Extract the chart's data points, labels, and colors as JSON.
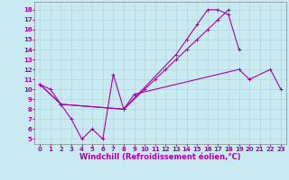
{
  "background_color": "#c8eaf0",
  "line_color": "#aa00aa",
  "grid_color": "#b0d8d8",
  "xlabel": "Windchill (Refroidissement éolien,°C)",
  "ylabel_ticks": [
    5,
    6,
    7,
    8,
    9,
    10,
    11,
    12,
    13,
    14,
    15,
    16,
    17,
    18
  ],
  "xlabel_ticks": [
    0,
    1,
    2,
    3,
    4,
    5,
    6,
    7,
    8,
    9,
    10,
    11,
    12,
    13,
    14,
    15,
    16,
    17,
    18,
    19,
    20,
    21,
    22,
    23
  ],
  "xlim": [
    -0.5,
    23.5
  ],
  "ylim": [
    4.5,
    18.8
  ],
  "curve1_x": [
    0,
    1,
    2,
    3,
    4,
    5,
    6,
    7,
    8,
    9,
    19,
    20,
    22,
    23
  ],
  "curve1_y": [
    10.5,
    10.0,
    8.5,
    7.0,
    5.0,
    6.0,
    5.0,
    11.5,
    8.0,
    9.5,
    12.0,
    11.0,
    12.0,
    10.0
  ],
  "curve2_x": [
    0,
    2,
    8,
    13,
    14,
    15,
    16,
    17,
    18,
    19
  ],
  "curve2_y": [
    10.5,
    8.5,
    8.0,
    13.5,
    15.0,
    16.5,
    18.0,
    18.0,
    17.5,
    14.0
  ],
  "curve3_x": [
    0,
    2,
    8,
    10,
    11,
    12,
    13,
    14,
    15,
    16,
    17,
    18
  ],
  "curve3_y": [
    10.5,
    8.5,
    8.0,
    10.0,
    11.0,
    12.0,
    13.0,
    14.0,
    15.0,
    16.0,
    17.0,
    18.0
  ],
  "tick_fontsize": 5.0,
  "label_fontsize": 6.0,
  "marker_size": 2.5,
  "linewidth": 0.8
}
